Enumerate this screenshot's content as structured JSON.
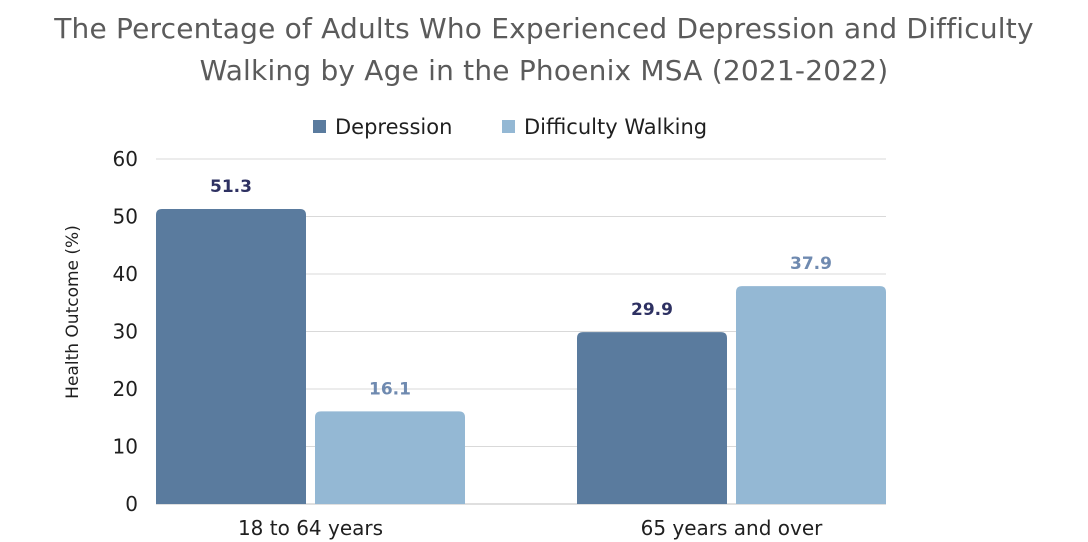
{
  "chart_data": {
    "type": "bar",
    "title_lines": [
      "The Percentage of Adults Who Experienced Depression and Difficulty",
      "Walking by Age in the Phoenix MSA (2021-2022)"
    ],
    "categories": [
      "18 to 64 years",
      "65 years and over"
    ],
    "series": [
      {
        "name": "Depression",
        "values": [
          51.3,
          29.9
        ],
        "color": "#5a7b9e",
        "label_color": "#2e3162"
      },
      {
        "name": "Difficulty Walking",
        "values": [
          16.1,
          37.9
        ],
        "color": "#94b8d4",
        "label_color": "#6f8ab0"
      }
    ],
    "data_labels": [
      [
        "51.3",
        "29.9"
      ],
      [
        "16.1",
        "37.9"
      ]
    ],
    "xlabel": "",
    "ylabel": "Health Outcome (%)",
    "ylim": [
      0,
      60
    ],
    "yticks": [
      0,
      10,
      20,
      30,
      40,
      50,
      60
    ],
    "grid": true,
    "legend_position": "top-center"
  }
}
